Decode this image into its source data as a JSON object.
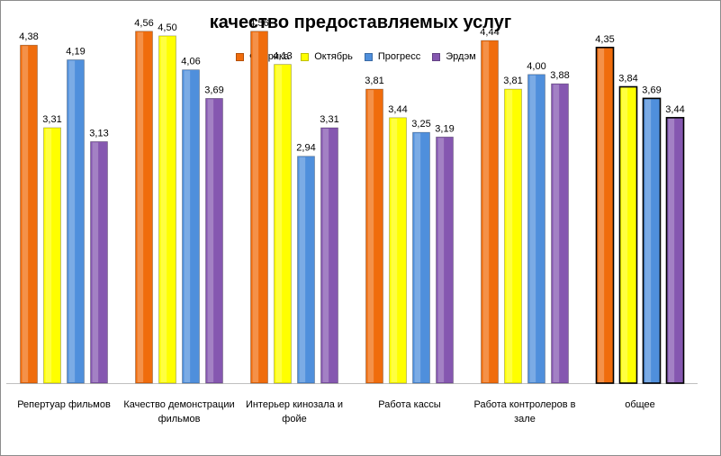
{
  "chart_data": {
    "type": "bar",
    "title": "качество предоставляемых услуг",
    "categories": [
      "Репертуар фильмов",
      "Качество демонстрации фильмов",
      "Интерьер кинозала и фойе",
      "Работа кассы",
      "Работа контролеров в зале",
      "общее"
    ],
    "series": [
      {
        "name": "Фабрика",
        "color": "#f06c0c",
        "values": [
          4.38,
          4.56,
          4.56,
          3.81,
          4.44,
          4.35
        ],
        "labels": [
          "4,38",
          "4,56",
          "4,56",
          "3,81",
          "4,44",
          "4,35"
        ]
      },
      {
        "name": "Октябрь",
        "color": "#ffff00",
        "values": [
          3.31,
          4.5,
          4.13,
          3.44,
          3.81,
          3.84
        ],
        "labels": [
          "3,31",
          "4,50",
          "4,13",
          "3,44",
          "3,81",
          "3,84"
        ]
      },
      {
        "name": "Прогресс",
        "color": "#4f8fdc",
        "values": [
          4.19,
          4.06,
          2.94,
          3.25,
          4.0,
          3.69
        ],
        "labels": [
          "4,19",
          "4,06",
          "2,94",
          "3,25",
          "4,00",
          "3,69"
        ]
      },
      {
        "name": "Эрдэм",
        "color": "#8557b0",
        "values": [
          3.13,
          3.69,
          3.31,
          3.19,
          3.88,
          3.44
        ],
        "labels": [
          "3,13",
          "3,69",
          "3,31",
          "3,19",
          "3,88",
          "3,44"
        ]
      }
    ],
    "ylim": [
      0,
      5
    ],
    "grid": false,
    "legend_position": "top",
    "xlabel": "",
    "ylabel": ""
  }
}
